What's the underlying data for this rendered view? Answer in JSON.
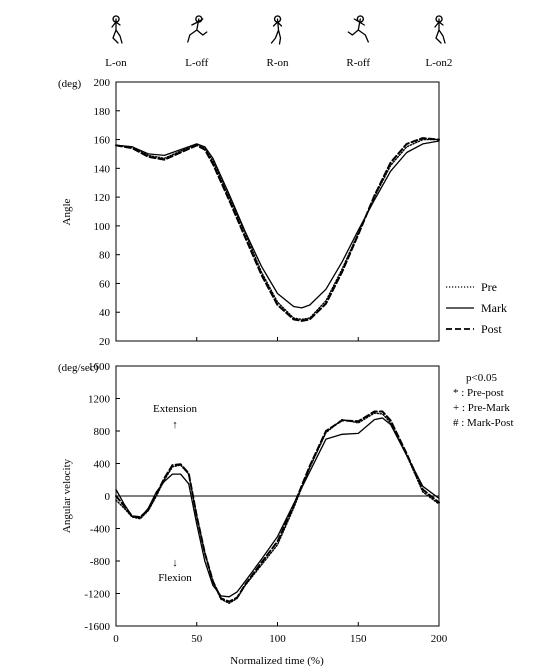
{
  "phases": [
    {
      "label": "L-on",
      "x": 0
    },
    {
      "label": "L-off",
      "x": 50
    },
    {
      "label": "R-on",
      "x": 100
    },
    {
      "label": "R-off",
      "x": 150
    },
    {
      "label": "L-on2",
      "x": 200
    }
  ],
  "xlabel": "Normalized time (%)",
  "legend": [
    {
      "name": "Pre",
      "style": "dotted"
    },
    {
      "name": "Mark",
      "style": "solid"
    },
    {
      "name": "Post",
      "style": "dashed"
    }
  ],
  "significance": {
    "title": "p<0.05",
    "items": [
      "* : Pre-post",
      "+ : Pre-Mark",
      "# : Mark-Post"
    ]
  },
  "annotations": {
    "extension": "Extension",
    "extension_arrow": "↑",
    "flexion": "Flexion",
    "flexion_arrow": "↓"
  },
  "chart_data": [
    {
      "type": "line",
      "ylabel": "Angle",
      "unit": "(deg)",
      "xlim": [
        0,
        200
      ],
      "ylim": [
        20,
        200
      ],
      "xticks": [
        0,
        50,
        100,
        150,
        200
      ],
      "yticks": [
        20,
        40,
        60,
        80,
        100,
        120,
        140,
        160,
        180,
        200
      ],
      "series": [
        {
          "name": "Pre",
          "style": "dotted",
          "x": [
            0,
            10,
            20,
            30,
            40,
            50,
            55,
            60,
            70,
            80,
            90,
            100,
            110,
            115,
            120,
            130,
            140,
            150,
            160,
            170,
            180,
            190,
            200
          ],
          "y": [
            156,
            155,
            149,
            147,
            152,
            157,
            154,
            145,
            120,
            95,
            68,
            47,
            36,
            35,
            36,
            48,
            70,
            95,
            120,
            142,
            155,
            160,
            160
          ]
        },
        {
          "name": "Mark",
          "style": "solid",
          "x": [
            0,
            10,
            20,
            30,
            40,
            50,
            55,
            60,
            70,
            80,
            90,
            100,
            110,
            115,
            120,
            130,
            140,
            150,
            160,
            170,
            180,
            190,
            200
          ],
          "y": [
            156,
            155,
            150,
            149,
            153,
            157,
            155,
            147,
            122,
            96,
            72,
            53,
            44,
            43,
            45,
            56,
            75,
            97,
            118,
            138,
            151,
            157,
            159
          ]
        },
        {
          "name": "Post",
          "style": "dashed",
          "x": [
            0,
            10,
            20,
            30,
            40,
            50,
            55,
            60,
            70,
            80,
            90,
            100,
            110,
            115,
            120,
            130,
            140,
            150,
            160,
            170,
            180,
            190,
            200
          ],
          "y": [
            156,
            154,
            148,
            146,
            151,
            156,
            153,
            143,
            118,
            92,
            66,
            45,
            35,
            34,
            35,
            46,
            68,
            94,
            121,
            144,
            157,
            161,
            160
          ]
        }
      ]
    },
    {
      "type": "line",
      "ylabel": "Angular velocity",
      "unit": "(deg/sec)",
      "xlim": [
        0,
        200
      ],
      "ylim": [
        -1600,
        1600
      ],
      "xticks": [
        0,
        50,
        100,
        150,
        200
      ],
      "yticks": [
        -1600,
        -1200,
        -800,
        -400,
        0,
        400,
        800,
        1200,
        1600
      ],
      "series": [
        {
          "name": "Pre",
          "style": "dotted",
          "x": [
            0,
            5,
            10,
            15,
            20,
            25,
            30,
            35,
            40,
            45,
            50,
            55,
            60,
            65,
            70,
            75,
            80,
            90,
            100,
            110,
            120,
            130,
            140,
            150,
            160,
            165,
            170,
            180,
            190,
            200
          ],
          "y": [
            -50,
            -150,
            -260,
            -280,
            -180,
            0,
            200,
            360,
            380,
            270,
            -250,
            -700,
            -1050,
            -1270,
            -1320,
            -1260,
            -1100,
            -850,
            -600,
            -150,
            350,
            780,
            940,
            900,
            1020,
            1010,
            900,
            500,
            50,
            -100
          ]
        },
        {
          "name": "Mark",
          "style": "solid",
          "x": [
            0,
            5,
            10,
            15,
            20,
            25,
            30,
            35,
            40,
            45,
            50,
            55,
            60,
            65,
            70,
            75,
            80,
            90,
            100,
            110,
            120,
            130,
            140,
            150,
            160,
            165,
            170,
            180,
            190,
            200
          ],
          "y": [
            80,
            -100,
            -250,
            -270,
            -150,
            50,
            180,
            270,
            270,
            150,
            -350,
            -800,
            -1100,
            -1230,
            -1240,
            -1180,
            -1050,
            -780,
            -500,
            -100,
            300,
            700,
            760,
            770,
            940,
            960,
            880,
            500,
            120,
            -30
          ]
        },
        {
          "name": "Post",
          "style": "dashed",
          "x": [
            0,
            5,
            10,
            15,
            20,
            25,
            30,
            35,
            40,
            45,
            50,
            55,
            60,
            65,
            70,
            75,
            80,
            90,
            100,
            110,
            120,
            130,
            140,
            150,
            160,
            165,
            170,
            180,
            190,
            200
          ],
          "y": [
            0,
            -120,
            -250,
            -260,
            -170,
            20,
            220,
            380,
            390,
            280,
            -250,
            -700,
            -1050,
            -1260,
            -1300,
            -1250,
            -1090,
            -820,
            -560,
            -120,
            370,
            800,
            930,
            920,
            1040,
            1040,
            930,
            520,
            80,
            -80
          ]
        }
      ]
    }
  ]
}
